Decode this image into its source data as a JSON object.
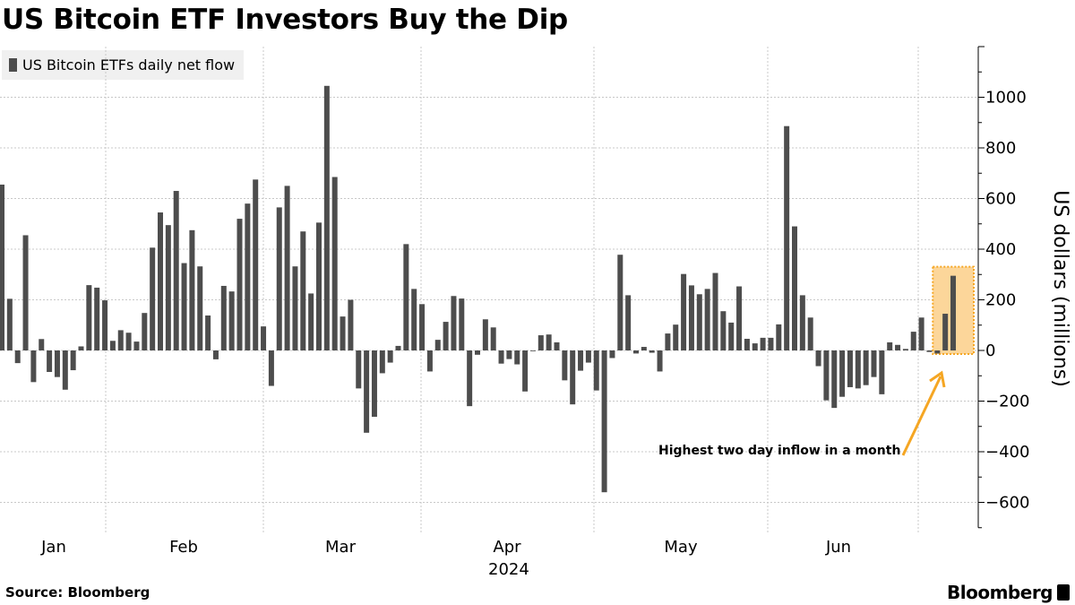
{
  "title": "US Bitcoin ETF Investors Buy the Dip",
  "source": "Source: Bloomberg",
  "logo": "Bloomberg",
  "colors": {
    "bar": "#4d4d4d",
    "highlight": "#f5a623",
    "highlight_fill": "#fcd69a"
  },
  "chart_data": {
    "type": "bar",
    "title": "US Bitcoin ETF Investors Buy the Dip",
    "ylabel": "US dollars (millions)",
    "xlabel": "",
    "ylim": [
      -700,
      1200
    ],
    "yticks": [
      -600,
      -400,
      -200,
      0,
      200,
      400,
      600,
      800,
      1000
    ],
    "xticks": [
      "Jan",
      "Feb",
      "Mar",
      "Apr",
      "May",
      "Jun"
    ],
    "xtick_year": "2024",
    "grid": true,
    "legend_position": "top-left",
    "series": [
      {
        "name": "US Bitcoin ETFs daily net flow",
        "values": [
          655,
          204,
          -50,
          455,
          -125,
          45,
          -85,
          -105,
          -155,
          -78,
          16,
          258,
          248,
          198,
          38,
          80,
          70,
          35,
          148,
          406,
          545,
          495,
          630,
          345,
          475,
          332,
          138,
          -35,
          255,
          233,
          520,
          580,
          675,
          95,
          -140,
          565,
          650,
          332,
          470,
          225,
          505,
          1045,
          685,
          134,
          200,
          -150,
          -325,
          -262,
          -90,
          -48,
          18,
          420,
          243,
          183,
          -83,
          42,
          113,
          215,
          205,
          -220,
          -17,
          123,
          91,
          -52,
          -34,
          -55,
          -162,
          0,
          60,
          63,
          32,
          -118,
          -213,
          -80,
          -48,
          -158,
          -560,
          -30,
          378,
          218,
          -12,
          14,
          -9,
          -83,
          67,
          102,
          302,
          257,
          222,
          243,
          306,
          155,
          110,
          253,
          46,
          28,
          50,
          50,
          103,
          886,
          490,
          218,
          130,
          -62,
          -197,
          -227,
          -183,
          -145,
          -150,
          -137,
          -105,
          -173,
          32,
          22,
          6,
          74,
          130,
          -6,
          -12,
          145,
          295
        ]
      }
    ],
    "annotation": {
      "text": "Highest two day inflow in a month",
      "highlighted_last_bars": 2
    }
  }
}
